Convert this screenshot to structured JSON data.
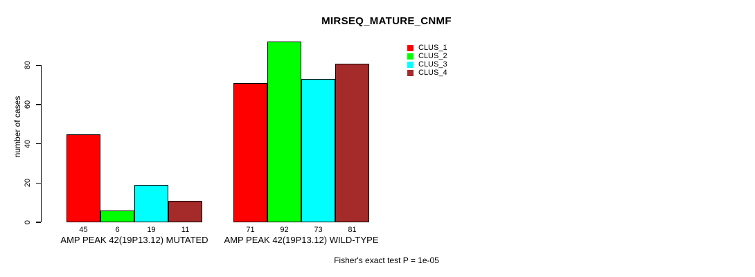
{
  "chart_data": {
    "type": "bar",
    "title": "MIRSEQ_MATURE_CNMF",
    "ylabel": "number of cases",
    "xlabel": "",
    "ylim": [
      0,
      92
    ],
    "yticks": [
      0,
      20,
      40,
      60,
      80
    ],
    "grid": false,
    "legend_position": "top-right",
    "categories": [
      "AMP PEAK 42(19P13.12) MUTATED",
      "AMP PEAK 42(19P13.12) WILD-TYPE"
    ],
    "series": [
      {
        "name": "CLUS_1",
        "color": "#FF0000",
        "values": [
          45,
          71
        ]
      },
      {
        "name": "CLUS_2",
        "color": "#00FF00",
        "values": [
          6,
          92
        ]
      },
      {
        "name": "CLUS_3",
        "color": "#00FFFF",
        "values": [
          19,
          73
        ]
      },
      {
        "name": "CLUS_4",
        "color": "#A52A2A",
        "values": [
          11,
          81
        ]
      }
    ],
    "bar_value_labels": true,
    "annotation": "Fisher's exact test P = 1e-05"
  },
  "colors": {
    "background": "#FFFFFF",
    "axis": "#000000",
    "text": "#000000"
  }
}
